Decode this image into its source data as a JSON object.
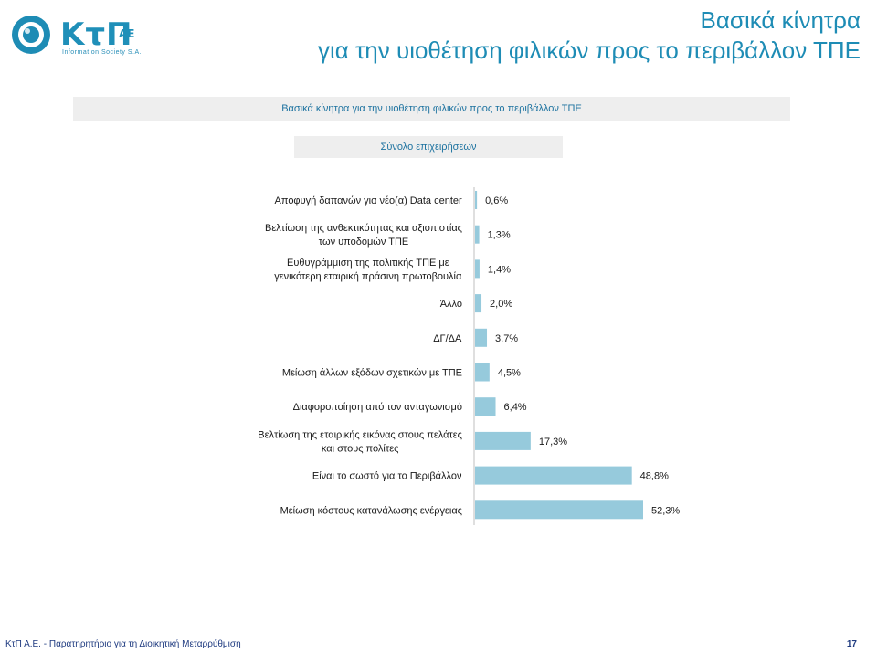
{
  "logo": {
    "text": "ΚτΠ",
    "suffix": "ΑΕ",
    "tagline": "Information Society S.A."
  },
  "title": {
    "line1": "Βασικά κίνητρα",
    "line2": "για την υιοθέτηση φιλικών προς το περιβάλλον ΤΠΕ"
  },
  "subheader": "Βασικά κίνητρα για την υιοθέτηση φιλικών προς το περιβάλλον ΤΠΕ",
  "segment_label": "Σύνολο επιχειρήσεων",
  "chart_data": {
    "type": "bar",
    "orientation": "horizontal",
    "categories": [
      [
        "Αποφυγή δαπανών για νέο(α) Data center"
      ],
      [
        "Βελτίωση της ανθεκτικότητας και αξιοπιστίας",
        "των υποδομών ΤΠΕ"
      ],
      [
        "Ευθυγράμμιση της πολιτικής ΤΠΕ με",
        "γενικότερη εταιρική πράσινη πρωτοβουλία"
      ],
      [
        "Άλλο"
      ],
      [
        "ΔΓ/ΔΑ"
      ],
      [
        "Μείωση άλλων εξόδων σχετικών με ΤΠΕ"
      ],
      [
        "Διαφοροποίηση από τον ανταγωνισμό"
      ],
      [
        "Βελτίωση της εταιρικής εικόνας στους πελάτες",
        "και στους πολίτες"
      ],
      [
        "Είναι το σωστό για το Περιβάλλον"
      ],
      [
        "Μείωση κόστους κατανάλωσης ενέργειας"
      ]
    ],
    "values": [
      0.6,
      1.3,
      1.4,
      2.0,
      3.7,
      4.5,
      6.4,
      17.3,
      48.8,
      52.3
    ],
    "value_labels": [
      "0,6%",
      "1,3%",
      "1,4%",
      "2,0%",
      "3,7%",
      "4,5%",
      "6,4%",
      "17,3%",
      "48,8%",
      "52,3%"
    ],
    "xlim": [
      0,
      52.3
    ],
    "bar_color": "#96cadc",
    "grid": false,
    "legend": "none"
  },
  "footer": {
    "left": "ΚτΠ Α.Ε. - Παρατηρητήριο για τη Διοικητική Μεταρρύθμιση",
    "page": "17"
  }
}
